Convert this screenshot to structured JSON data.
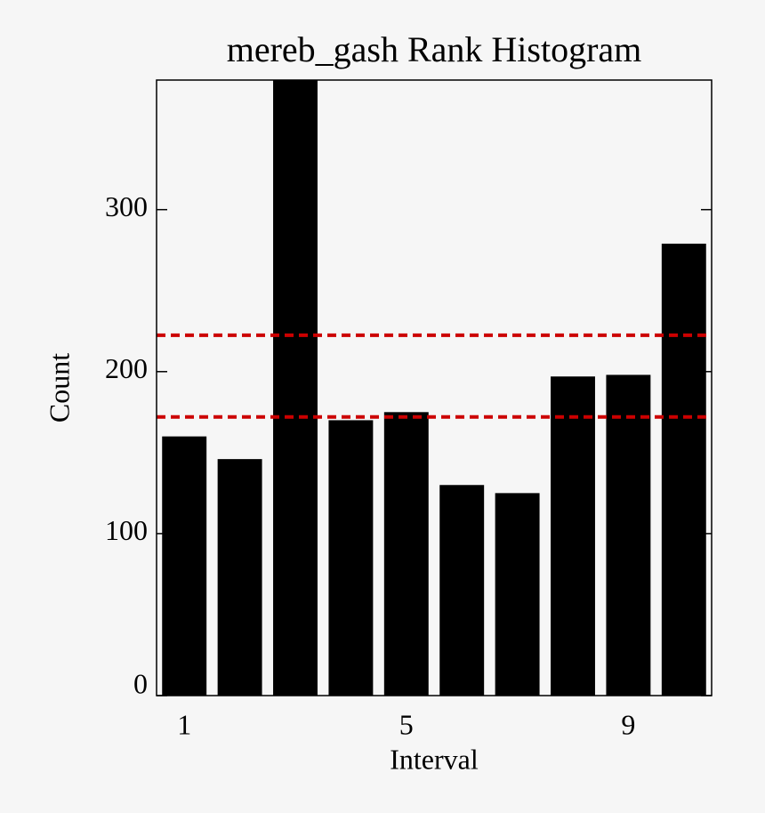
{
  "chart_data": {
    "type": "bar",
    "title": "mereb_gash Rank Histogram",
    "x_label": "Interval",
    "y_label": "Count",
    "categories": [
      "1",
      null,
      null,
      null,
      "5",
      null,
      null,
      null,
      "9",
      null
    ],
    "values": [
      160,
      146,
      380,
      170,
      175,
      130,
      125,
      197,
      198,
      279
    ],
    "color": "#000000",
    "ylim": [
      0,
      380
    ],
    "yticks": [
      0,
      100,
      200,
      300
    ],
    "reference_lines": [
      222.5,
      172
    ],
    "reference_color": "#cc0000"
  }
}
